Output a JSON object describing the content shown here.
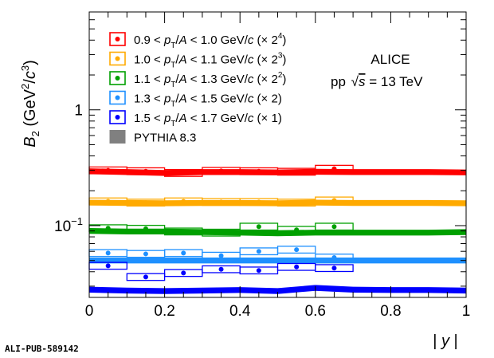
{
  "chart_data": {
    "type": "scatter",
    "ylabel": "B_2 (GeV^2/c^3)",
    "xlabel": "|y|",
    "xlim": [
      0,
      1
    ],
    "ylim": [
      0.024,
      7
    ],
    "yscale": "log",
    "x_ticks": [
      "0",
      "0.2",
      "0.4",
      "0.6",
      "0.8",
      "1"
    ],
    "y_ticks": [
      {
        "value": 1,
        "label": "1"
      },
      {
        "value": 0.1,
        "label": "10^-1"
      }
    ],
    "x": [
      0.05,
      0.15,
      0.25,
      0.35,
      0.45,
      0.55,
      0.65
    ],
    "bin_edges": [
      0,
      0.1,
      0.2,
      0.3,
      0.4,
      0.5,
      0.6,
      0.7
    ],
    "series": [
      {
        "name": "0.9 < pT/A < 1.0 GeV/c (× 2^4)",
        "color": "#ff0000",
        "values": [
          0.3,
          0.295,
          0.285,
          0.297,
          0.295,
          0.292,
          0.31
        ],
        "model": [
          0.295,
          0.29,
          0.285,
          0.29,
          0.29,
          0.288,
          0.292,
          0.29,
          0.29,
          0.29,
          0.288
        ]
      },
      {
        "name": "1.0 < pT/A < 1.1 GeV/c (× 2^3)",
        "color": "#ffaa00",
        "values": [
          0.162,
          0.158,
          0.162,
          0.16,
          0.16,
          0.158,
          0.165
        ],
        "model": [
          0.158,
          0.157,
          0.156,
          0.157,
          0.157,
          0.156,
          0.158,
          0.157,
          0.157,
          0.157,
          0.156
        ]
      },
      {
        "name": "1.1 < pT/A < 1.3 GeV/c (× 2^2)",
        "color": "#00a000",
        "values": [
          0.095,
          0.094,
          0.089,
          0.087,
          0.098,
          0.092,
          0.098
        ],
        "model": [
          0.09,
          0.089,
          0.089,
          0.088,
          0.087,
          0.086,
          0.087,
          0.087,
          0.087,
          0.087,
          0.088
        ]
      },
      {
        "name": "1.3 < pT/A < 1.5 GeV/c (× 2)",
        "color": "#1e90ff",
        "values": [
          0.058,
          0.057,
          0.058,
          0.055,
          0.06,
          0.062,
          0.053
        ],
        "model": [
          0.05,
          0.05,
          0.05,
          0.05,
          0.05,
          0.05,
          0.05,
          0.05,
          0.05,
          0.05,
          0.05
        ]
      },
      {
        "name": "1.5 < pT/A < 1.7 GeV/c (× 1)",
        "color": "#0000ff",
        "values": [
          0.045,
          0.036,
          0.039,
          0.042,
          0.041,
          0.044,
          0.043
        ],
        "model": [
          0.028,
          0.0275,
          0.0272,
          0.0275,
          0.0278,
          0.0272,
          0.029,
          0.028,
          0.0278,
          0.0278,
          0.0275
        ]
      }
    ],
    "model_x": [
      0,
      0.1,
      0.2,
      0.3,
      0.4,
      0.5,
      0.6,
      0.7,
      0.8,
      0.9,
      1.0
    ],
    "model_name": "PYTHIA 8.3",
    "model_color": "#808080",
    "annotations": [
      "ALICE",
      "pp √s = 13 TeV"
    ],
    "footer": "ALI-PUB-589142",
    "legend_position": "top-left"
  }
}
